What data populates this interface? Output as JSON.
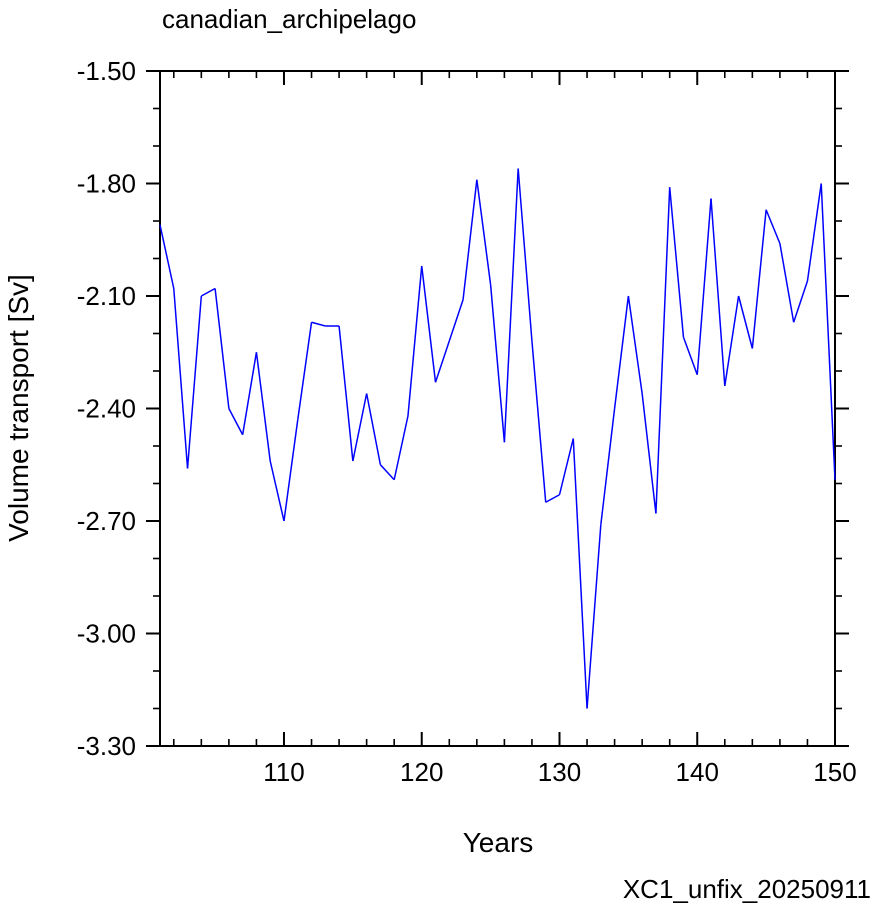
{
  "chart_data": {
    "type": "line",
    "title": "canadian_archipelago",
    "xlabel": "Years",
    "ylabel": "Volume transport [Sv]",
    "xlim": [
      101,
      150
    ],
    "ylim": [
      -3.3,
      -1.5
    ],
    "x_ticks": [
      110,
      120,
      130,
      140,
      150
    ],
    "x_tick_labels": [
      "110",
      "120",
      "130",
      "140",
      "150"
    ],
    "y_ticks": [
      -1.5,
      -1.8,
      -2.1,
      -2.4,
      -2.7,
      -3.0,
      -3.3
    ],
    "y_tick_labels": [
      "-1.50",
      "-1.80",
      "-2.10",
      "-2.40",
      "-2.70",
      "-3.00",
      "-3.30"
    ],
    "grid": false,
    "line_color": "#0000ff",
    "series": [
      {
        "x": [
          101,
          102,
          103,
          104,
          105,
          106,
          107,
          108,
          109,
          110,
          111,
          112,
          113,
          114,
          115,
          116,
          117,
          118,
          119,
          120,
          121,
          122,
          123,
          124,
          125,
          126,
          127,
          128,
          129,
          130,
          131,
          132,
          133,
          134,
          135,
          136,
          137,
          138,
          139,
          140,
          141,
          142,
          143,
          144,
          145,
          146,
          147,
          148,
          149,
          150
        ],
        "values": [
          -1.91,
          -2.08,
          -2.56,
          -2.1,
          -2.08,
          -2.4,
          -2.47,
          -2.25,
          -2.54,
          -2.7,
          -2.43,
          -2.17,
          -2.18,
          -2.18,
          -2.54,
          -2.36,
          -2.55,
          -2.59,
          -2.42,
          -2.02,
          -2.33,
          -2.22,
          -2.11,
          -1.79,
          -2.07,
          -2.49,
          -1.76,
          -2.22,
          -2.65,
          -2.63,
          -2.48,
          -3.2,
          -2.71,
          -2.4,
          -2.1,
          -2.36,
          -2.68,
          -1.81,
          -2.21,
          -2.31,
          -1.84,
          -2.34,
          -2.1,
          -2.24,
          -1.87,
          -1.96,
          -2.17,
          -2.06,
          -1.8,
          -2.59
        ]
      }
    ]
  },
  "footer": {
    "label": "XC1_unfix_20250911",
    "color": "#0000ff"
  }
}
